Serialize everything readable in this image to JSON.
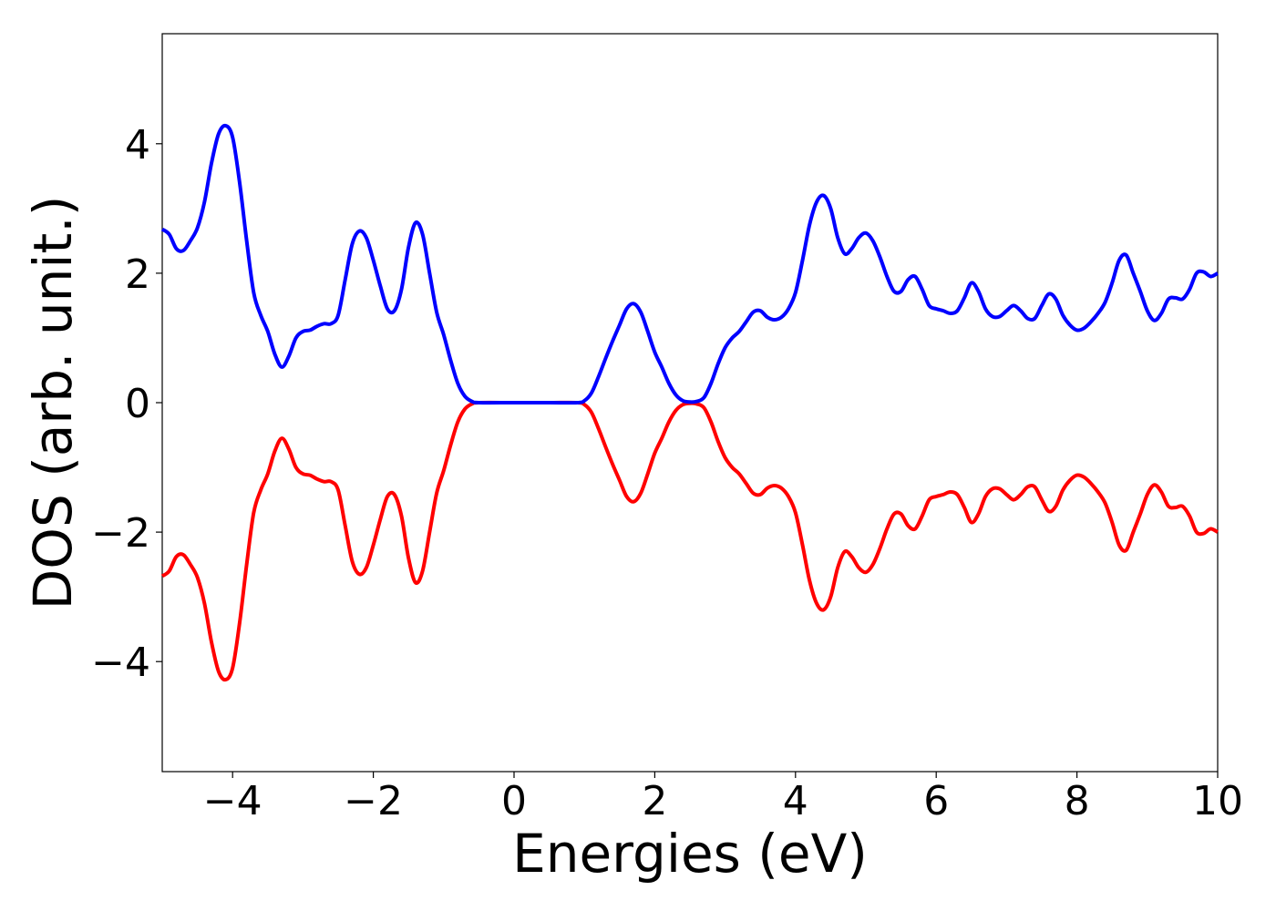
{
  "chart_data": {
    "type": "line",
    "title": "",
    "xlabel": "Energies (eV)",
    "ylabel": "DOS (arb. unit.)",
    "xlim": [
      -5,
      10
    ],
    "ylim": [
      -5.7,
      5.7
    ],
    "xticks": [
      -4,
      -2,
      0,
      2,
      4,
      6,
      8,
      10
    ],
    "xtick_labels": [
      "−4",
      "−2",
      "0",
      "2",
      "4",
      "6",
      "8",
      "10"
    ],
    "yticks": [
      -4,
      -2,
      0,
      2,
      4
    ],
    "ytick_labels": [
      "−4",
      "−2",
      "0",
      "2",
      "4"
    ],
    "grid": false,
    "legend": "none",
    "series": [
      {
        "color": "#0000ff",
        "points": [
          [
            -5.0,
            2.68
          ],
          [
            -4.9,
            2.6
          ],
          [
            -4.8,
            2.38
          ],
          [
            -4.7,
            2.35
          ],
          [
            -4.6,
            2.5
          ],
          [
            -4.5,
            2.7
          ],
          [
            -4.4,
            3.1
          ],
          [
            -4.3,
            3.7
          ],
          [
            -4.2,
            4.15
          ],
          [
            -4.1,
            4.28
          ],
          [
            -4.0,
            4.1
          ],
          [
            -3.9,
            3.4
          ],
          [
            -3.8,
            2.5
          ],
          [
            -3.7,
            1.7
          ],
          [
            -3.6,
            1.35
          ],
          [
            -3.5,
            1.1
          ],
          [
            -3.4,
            0.75
          ],
          [
            -3.3,
            0.55
          ],
          [
            -3.2,
            0.72
          ],
          [
            -3.1,
            1.0
          ],
          [
            -3.0,
            1.1
          ],
          [
            -2.9,
            1.12
          ],
          [
            -2.8,
            1.18
          ],
          [
            -2.7,
            1.22
          ],
          [
            -2.6,
            1.22
          ],
          [
            -2.5,
            1.35
          ],
          [
            -2.4,
            1.9
          ],
          [
            -2.3,
            2.45
          ],
          [
            -2.2,
            2.65
          ],
          [
            -2.1,
            2.55
          ],
          [
            -2.0,
            2.2
          ],
          [
            -1.9,
            1.8
          ],
          [
            -1.8,
            1.45
          ],
          [
            -1.7,
            1.42
          ],
          [
            -1.6,
            1.75
          ],
          [
            -1.5,
            2.4
          ],
          [
            -1.4,
            2.78
          ],
          [
            -1.3,
            2.6
          ],
          [
            -1.2,
            2.0
          ],
          [
            -1.1,
            1.4
          ],
          [
            -1.0,
            1.05
          ],
          [
            -0.9,
            0.65
          ],
          [
            -0.8,
            0.3
          ],
          [
            -0.7,
            0.1
          ],
          [
            -0.6,
            0.02
          ],
          [
            -0.5,
            0.0
          ],
          [
            0.0,
            0.0
          ],
          [
            0.5,
            0.0
          ],
          [
            0.9,
            0.0
          ],
          [
            1.0,
            0.03
          ],
          [
            1.1,
            0.15
          ],
          [
            1.2,
            0.4
          ],
          [
            1.3,
            0.68
          ],
          [
            1.4,
            0.95
          ],
          [
            1.5,
            1.2
          ],
          [
            1.6,
            1.45
          ],
          [
            1.7,
            1.53
          ],
          [
            1.8,
            1.4
          ],
          [
            1.9,
            1.1
          ],
          [
            2.0,
            0.78
          ],
          [
            2.1,
            0.55
          ],
          [
            2.2,
            0.3
          ],
          [
            2.3,
            0.12
          ],
          [
            2.4,
            0.03
          ],
          [
            2.5,
            0.01
          ],
          [
            2.6,
            0.02
          ],
          [
            2.7,
            0.08
          ],
          [
            2.8,
            0.3
          ],
          [
            2.9,
            0.6
          ],
          [
            3.0,
            0.85
          ],
          [
            3.1,
            1.0
          ],
          [
            3.2,
            1.1
          ],
          [
            3.3,
            1.25
          ],
          [
            3.4,
            1.4
          ],
          [
            3.5,
            1.42
          ],
          [
            3.6,
            1.32
          ],
          [
            3.7,
            1.28
          ],
          [
            3.8,
            1.32
          ],
          [
            3.9,
            1.45
          ],
          [
            4.0,
            1.7
          ],
          [
            4.1,
            2.2
          ],
          [
            4.2,
            2.75
          ],
          [
            4.3,
            3.1
          ],
          [
            4.4,
            3.2
          ],
          [
            4.5,
            3.0
          ],
          [
            4.6,
            2.55
          ],
          [
            4.7,
            2.3
          ],
          [
            4.8,
            2.38
          ],
          [
            4.9,
            2.55
          ],
          [
            5.0,
            2.62
          ],
          [
            5.1,
            2.5
          ],
          [
            5.2,
            2.25
          ],
          [
            5.3,
            1.95
          ],
          [
            5.4,
            1.72
          ],
          [
            5.5,
            1.72
          ],
          [
            5.6,
            1.9
          ],
          [
            5.7,
            1.95
          ],
          [
            5.8,
            1.75
          ],
          [
            5.9,
            1.5
          ],
          [
            6.0,
            1.45
          ],
          [
            6.1,
            1.42
          ],
          [
            6.2,
            1.38
          ],
          [
            6.3,
            1.42
          ],
          [
            6.4,
            1.62
          ],
          [
            6.5,
            1.85
          ],
          [
            6.6,
            1.72
          ],
          [
            6.7,
            1.45
          ],
          [
            6.8,
            1.33
          ],
          [
            6.9,
            1.33
          ],
          [
            7.0,
            1.42
          ],
          [
            7.1,
            1.5
          ],
          [
            7.2,
            1.42
          ],
          [
            7.3,
            1.3
          ],
          [
            7.4,
            1.3
          ],
          [
            7.5,
            1.5
          ],
          [
            7.6,
            1.68
          ],
          [
            7.7,
            1.6
          ],
          [
            7.8,
            1.35
          ],
          [
            7.9,
            1.2
          ],
          [
            8.0,
            1.12
          ],
          [
            8.1,
            1.15
          ],
          [
            8.2,
            1.25
          ],
          [
            8.3,
            1.38
          ],
          [
            8.4,
            1.55
          ],
          [
            8.5,
            1.85
          ],
          [
            8.6,
            2.2
          ],
          [
            8.7,
            2.28
          ],
          [
            8.8,
            2.0
          ],
          [
            8.9,
            1.72
          ],
          [
            9.0,
            1.42
          ],
          [
            9.1,
            1.27
          ],
          [
            9.2,
            1.38
          ],
          [
            9.3,
            1.6
          ],
          [
            9.4,
            1.62
          ],
          [
            9.5,
            1.6
          ],
          [
            9.6,
            1.75
          ],
          [
            9.7,
            2.0
          ],
          [
            9.8,
            2.02
          ],
          [
            9.9,
            1.95
          ],
          [
            10.0,
            2.0
          ]
        ]
      },
      {
        "color": "#ff0000",
        "mirror_of": 0
      }
    ]
  }
}
